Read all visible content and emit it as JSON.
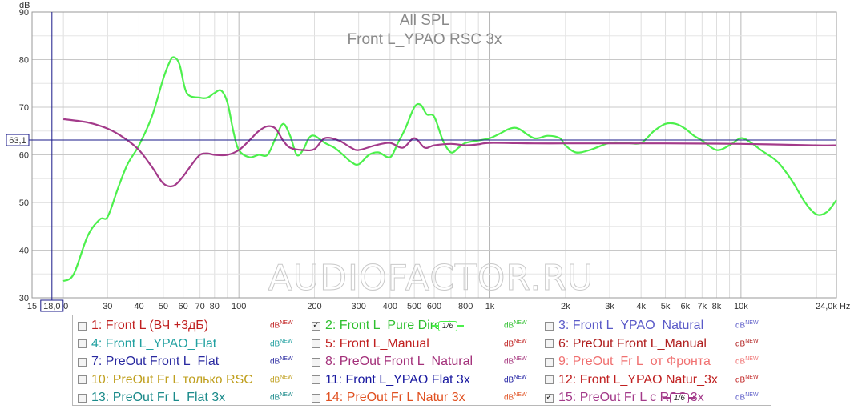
{
  "chart_data": {
    "type": "line",
    "title": "All SPL",
    "subtitle": "Front L_YPAO RSC 3x",
    "ylabel": "dB",
    "xlabel_unit": "Hz",
    "x_scale": "log",
    "xlim": [
      15,
      24000
    ],
    "ylim": [
      30,
      90
    ],
    "y_ticks": [
      30,
      40,
      50,
      60,
      70,
      80,
      90
    ],
    "x_tick_labels": [
      {
        "v": 15,
        "t": "15"
      },
      {
        "v": 20,
        "t": "20"
      },
      {
        "v": 30,
        "t": "30"
      },
      {
        "v": 40,
        "t": "40"
      },
      {
        "v": 50,
        "t": "50"
      },
      {
        "v": 60,
        "t": "60"
      },
      {
        "v": 70,
        "t": "70"
      },
      {
        "v": 80,
        "t": "80"
      },
      {
        "v": 100,
        "t": "100"
      },
      {
        "v": 200,
        "t": "200"
      },
      {
        "v": 300,
        "t": "300"
      },
      {
        "v": 400,
        "t": "400"
      },
      {
        "v": 500,
        "t": "500"
      },
      {
        "v": 600,
        "t": "600"
      },
      {
        "v": 800,
        "t": "800"
      },
      {
        "v": 1000,
        "t": "1k"
      },
      {
        "v": 2000,
        "t": "2k"
      },
      {
        "v": 3000,
        "t": "3k"
      },
      {
        "v": 4000,
        "t": "4k"
      },
      {
        "v": 5000,
        "t": "5k"
      },
      {
        "v": 6000,
        "t": "6k"
      },
      {
        "v": 7000,
        "t": "7k"
      },
      {
        "v": 8000,
        "t": "8k"
      },
      {
        "v": 10000,
        "t": "10k"
      },
      {
        "v": 24000,
        "t": "24,0k Hz"
      }
    ],
    "cursor": {
      "x": 18.0,
      "x_label": "18,0",
      "y": 63.1,
      "y_label": "63,1"
    },
    "grid": true,
    "series": [
      {
        "name": "2: Front L_Pure Direct",
        "color": "#4cf04c",
        "x": [
          20,
          22,
          25,
          28,
          30,
          33,
          36,
          40,
          45,
          50,
          53,
          55,
          58,
          62,
          70,
          75,
          80,
          85,
          90,
          95,
          100,
          110,
          120,
          130,
          140,
          150,
          160,
          170,
          180,
          190,
          200,
          220,
          240,
          260,
          280,
          300,
          330,
          360,
          400,
          430,
          460,
          500,
          530,
          560,
          600,
          650,
          700,
          750,
          800,
          900,
          1000,
          1100,
          1200,
          1300,
          1500,
          1700,
          1900,
          2000,
          2200,
          2500,
          3000,
          3500,
          4000,
          4500,
          5000,
          5500,
          6000,
          6500,
          7000,
          8000,
          9000,
          10000,
          11000,
          12000,
          14000,
          16000,
          18000,
          20000,
          22000,
          24000
        ],
        "y": [
          33.5,
          35,
          43,
          46.5,
          47,
          53,
          58,
          62,
          68,
          76,
          79.5,
          80.5,
          79,
          73,
          72,
          72,
          73,
          73.5,
          71,
          65,
          61,
          59.5,
          60,
          60,
          63.5,
          66.5,
          64,
          60,
          61,
          63.5,
          64,
          62.5,
          61.5,
          60,
          58.5,
          58,
          60,
          60.5,
          59.5,
          62.5,
          65.5,
          70,
          70.5,
          68.5,
          68,
          63,
          60.5,
          61.5,
          62.5,
          63,
          63.5,
          64.5,
          65.5,
          65.5,
          63.5,
          64,
          63.5,
          62,
          60.5,
          61,
          62.5,
          62.5,
          62.5,
          65,
          66.5,
          66.5,
          65.5,
          64,
          63,
          61,
          62,
          63.5,
          62.5,
          61,
          58.5,
          54.5,
          50,
          47.5,
          48,
          50.5
        ]
      },
      {
        "name": "15: PreOut Fr L с RSC 3x",
        "color": "#a33a8a",
        "x": [
          20,
          25,
          30,
          35,
          40,
          45,
          50,
          55,
          60,
          65,
          70,
          75,
          80,
          90,
          100,
          110,
          120,
          130,
          140,
          150,
          160,
          180,
          200,
          220,
          250,
          280,
          300,
          350,
          400,
          450,
          500,
          550,
          600,
          700,
          800,
          900,
          1000,
          1500,
          2000,
          3000,
          5000,
          10000,
          20000,
          24000
        ],
        "y": [
          67.5,
          66.8,
          65.5,
          63.5,
          61,
          57.5,
          54,
          53.5,
          55.5,
          58,
          60,
          60.3,
          60,
          60,
          61,
          63,
          65,
          66,
          65.5,
          63,
          61.5,
          61,
          61.2,
          63.5,
          63,
          61.5,
          61,
          62,
          62.5,
          61.5,
          63.5,
          61.5,
          62,
          62.3,
          62,
          62.2,
          62.5,
          62.4,
          62.4,
          62.4,
          62.4,
          62.3,
          62,
          62
        ]
      }
    ]
  },
  "watermark_text": "AUDIOFACTOR.RU",
  "legend": {
    "unit": "dB",
    "unit_sup": "NEW",
    "items": [
      {
        "label": "1: Front L (ВЧ +3дБ)",
        "color": "#c02020",
        "checked": false
      },
      {
        "label": "2: Front L_Pure Direct",
        "color": "#2fc02f",
        "checked": true,
        "smoothing": "1/6",
        "smooth_color": "#4cf04c"
      },
      {
        "label": "3: Front L_YPAO_Natural",
        "color": "#5a5ac8",
        "checked": false
      },
      {
        "label": "4: Front L_YPAO_Flat",
        "color": "#20a0a0",
        "checked": false
      },
      {
        "label": "5: Front L_Manual",
        "color": "#c02020",
        "checked": false
      },
      {
        "label": "6: PreOut Front L_Manual",
        "color": "#b02020",
        "checked": false
      },
      {
        "label": "7: PreOut Front L_Flat",
        "color": "#2a2aa0",
        "checked": false
      },
      {
        "label": "8: PreOut Front L_Natural",
        "color": "#a3307a",
        "checked": false
      },
      {
        "label": "9: PreOut_Fr L_от Фронта",
        "color": "#f07070",
        "checked": false
      },
      {
        "label": "10: PreOut Fr L только RSC",
        "color": "#c0a020",
        "checked": false
      },
      {
        "label": "11: Front L_YPAO Flat 3x",
        "color": "#1a1aa0",
        "checked": false
      },
      {
        "label": "12: Front L_YPAO Natur_3x",
        "color": "#c02020",
        "checked": false
      },
      {
        "label": "13: PreOut Fr L_Flat 3x",
        "color": "#1a8a8a",
        "checked": false
      },
      {
        "label": "14: PreOut Fr L Natur 3x",
        "color": "#e05020",
        "checked": false
      },
      {
        "label": "15: PreOut Fr L с RSC 3x",
        "color": "#a33a8a",
        "checked": true,
        "smoothing": "1/6",
        "smooth_color": "#a33a8a"
      }
    ],
    "unit_colors": [
      "#c02020",
      "#2fc02f",
      "#5a5ac8",
      "#20a0a0",
      "#c02020",
      "#b02020",
      "#2a2aa0",
      "#a3307a",
      "#f07070",
      "#c0a020",
      "#1a1aa0",
      "#c02020",
      "#1a8a8a",
      "#e05020",
      "#5a5ac8"
    ]
  }
}
